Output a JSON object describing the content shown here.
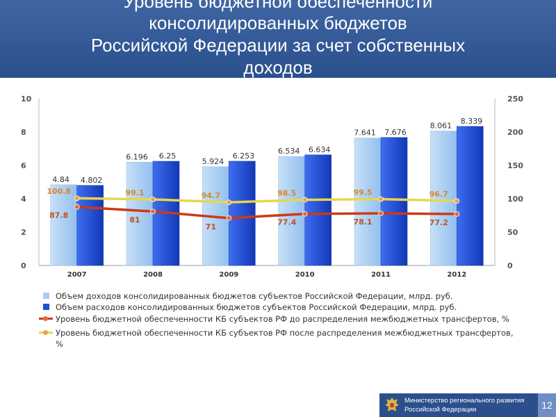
{
  "slide": {
    "title_lines": [
      "Уровень бюджетной обеспеченности",
      "консолидированных бюджетов",
      "Российской Федерации за счет собственных",
      "доходов"
    ],
    "footer": {
      "org_lines": [
        "Министерство регионального развития",
        "Российской Федерации"
      ],
      "page_number": "12"
    }
  },
  "colors": {
    "header_bg": "#2a4f8c",
    "income_bar": "#a9cdf0",
    "expense_bar": "#1f4fd6",
    "before_line": "#cc3a18",
    "after_line": "#e9d64a"
  },
  "chart_data": {
    "type": "bar",
    "categories": [
      "2007",
      "2008",
      "2009",
      "2010",
      "2011",
      "2012"
    ],
    "y_left": {
      "ticks": [
        0,
        2,
        4,
        6,
        8,
        10
      ],
      "range": [
        0,
        10
      ]
    },
    "y_right": {
      "ticks": [
        0,
        50,
        100,
        150,
        200,
        250
      ],
      "range": [
        0,
        250
      ]
    },
    "grid": false,
    "legend_position": "bottom",
    "series": [
      {
        "name": "Объем доходов консолидированных бюджетов субъектов Российской Федерации, млрд. руб.",
        "kind": "bar",
        "axis": "left",
        "values": [
          4.84,
          6.196,
          5.924,
          6.534,
          7.641,
          8.061
        ],
        "labels": [
          "4.84",
          "6.196",
          "5.924",
          "6.534",
          "7.641",
          "8.061"
        ]
      },
      {
        "name": "Объем расходов консолидированных бюджетов субъектов Российской Федерации, млрд. руб.",
        "kind": "bar",
        "axis": "left",
        "values": [
          4.802,
          6.25,
          6.253,
          6.634,
          7.676,
          8.339
        ],
        "labels": [
          "4.802",
          "6.25",
          "6.253",
          "6.634",
          "7.676",
          "8.339"
        ]
      },
      {
        "name": "Уровень бюджетной обеспеченности КБ субъектов РФ до распределения межбюджетных трансфертов, %",
        "kind": "line",
        "axis": "right",
        "values": [
          87.8,
          81,
          71,
          77.4,
          78.1,
          77.2
        ],
        "labels": [
          "87.8",
          "81",
          "71",
          "77.4",
          "78.1",
          "77.2"
        ]
      },
      {
        "name": "Уровень бюджетной обеспеченности КБ субъектов РФ после распределения межбюджетных трансфертов, %",
        "kind": "line",
        "axis": "right",
        "values": [
          100.8,
          99.1,
          94.7,
          98.5,
          99.5,
          96.7
        ],
        "labels": [
          "100.8",
          "99.1",
          "94.7",
          "98.5",
          "99.5",
          "96.7"
        ]
      }
    ],
    "legend_entries": [
      "Объем доходов консолидированных бюджетов субъектов Российской Федерации, млрд. руб.",
      "Объем расходов консолидированных бюджетов субъектов Российской Федерации, млрд. руб.",
      "Уровень бюджетной обеспеченности КБ субъектов РФ до распределения межбюджетных трансфертов, %",
      "Уровень бюджетной обеспеченности КБ субъектов РФ после распределения межбюджетных трансфертов, %"
    ]
  }
}
